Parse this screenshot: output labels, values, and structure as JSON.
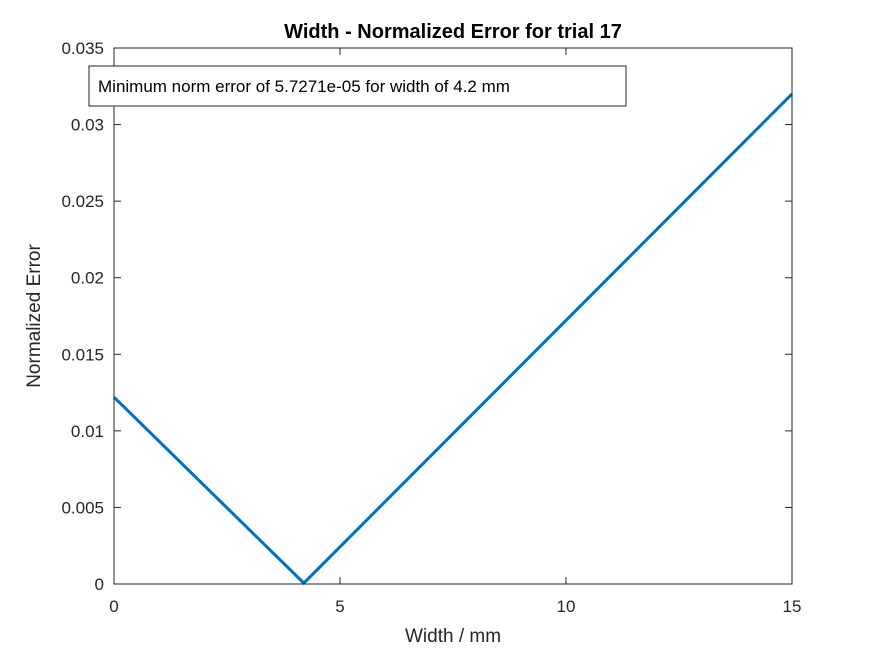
{
  "chart_data": {
    "type": "line",
    "title": "Width - Normalized Error for trial 17",
    "xlabel": "Width / mm",
    "ylabel": "Normalized Error",
    "xlim": [
      0,
      15
    ],
    "ylim": [
      0,
      0.035
    ],
    "xticks": [
      "0",
      "5",
      "10",
      "15"
    ],
    "yticks": [
      "0",
      "0.005",
      "0.01",
      "0.015",
      "0.02",
      "0.025",
      "0.03",
      "0.035"
    ],
    "grid": false,
    "series": [
      {
        "color": "#0072BD",
        "x": [
          0,
          4.2,
          15
        ],
        "y": [
          0.0122,
          5.7271e-05,
          0.032
        ]
      }
    ],
    "annotation": "Minimum norm error of 5.7271e-05 for width of 4.2 mm"
  }
}
